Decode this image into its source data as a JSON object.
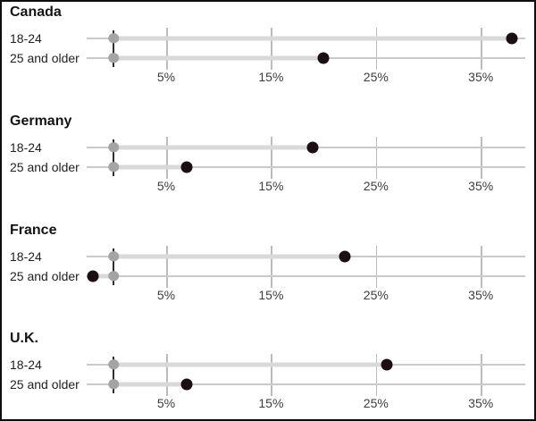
{
  "chart_data": {
    "type": "scatter",
    "subtype": "dumbbell-dot-plot-small-multiples",
    "unit": "percent",
    "x_ticks": [
      "5%",
      "15%",
      "25%",
      "35%"
    ],
    "x_tick_values": [
      5,
      15,
      25,
      35
    ],
    "x_range": [
      -2.6,
      39.2
    ],
    "grid": "vertical-ticks-and-row-lines",
    "legend_position": "none",
    "age_group_labels": [
      "18-24",
      "25 and older"
    ],
    "reference_value": 0,
    "panels": [
      {
        "country": "Canada",
        "rows": [
          {
            "label": "18-24",
            "value": 38,
            "reference": 0
          },
          {
            "label": "25 and older",
            "value": 20,
            "reference": 0
          }
        ]
      },
      {
        "country": "Germany",
        "rows": [
          {
            "label": "18-24",
            "value": 19,
            "reference": 0
          },
          {
            "label": "25 and older",
            "value": 7,
            "reference": 0
          }
        ]
      },
      {
        "country": "France",
        "rows": [
          {
            "label": "18-24",
            "value": 22,
            "reference": 0
          },
          {
            "label": "25 and older",
            "value": -2,
            "reference": 0
          }
        ]
      },
      {
        "country": "U.K.",
        "rows": [
          {
            "label": "18-24",
            "value": 26,
            "reference": 0
          },
          {
            "label": "25 and older",
            "value": 7,
            "reference": 0
          }
        ]
      }
    ]
  },
  "colors": {
    "value_dot": "#1b0f14",
    "reference_dot": "#a4a4a4",
    "connector": "#d9d9d9",
    "row_gridline": "#cacaca",
    "tick_line": "#bcbcbc",
    "zero_baseline": "#2e2e2e",
    "title_text": "#141414",
    "label_text": "#212121",
    "axis_text": "#3d3d3d",
    "frame_border": "#0d0d0d",
    "background": "#ffffff"
  }
}
